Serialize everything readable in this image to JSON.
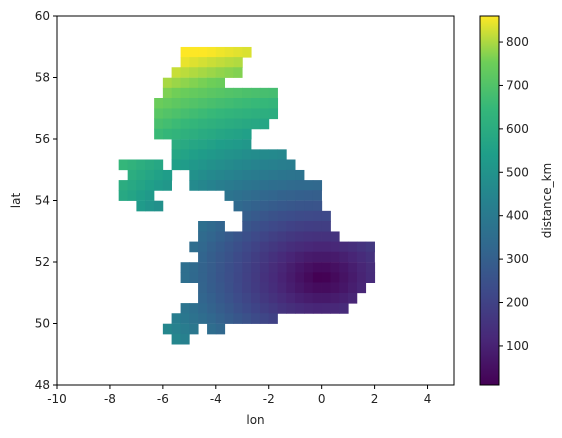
{
  "chart_data": {
    "type": "heatmap",
    "title": "",
    "xlabel": "lon",
    "ylabel": "lat",
    "xlim": [
      -10,
      5
    ],
    "ylim": [
      48,
      60
    ],
    "x_ticks": [
      -10,
      -8,
      -6,
      -4,
      -2,
      0,
      2,
      4
    ],
    "y_ticks": [
      48,
      50,
      52,
      54,
      56,
      58,
      60
    ],
    "grid_resolution_deg": {
      "lon": 0.3333,
      "lat": 0.3333
    },
    "colorbar": {
      "label": "distance_km",
      "colormap": "viridis",
      "range": [
        10,
        860
      ],
      "ticks": [
        100,
        200,
        300,
        400,
        500,
        600,
        700,
        800
      ]
    },
    "reference_point": {
      "lon": 0,
      "lat": 51.5
    },
    "value_model": "distance_km from reference point (great-circle), masked to land cells",
    "land_rows": [
      {
        "lat": 58.66,
        "spans": [
          [
            -5.33,
            -2.67
          ]
        ]
      },
      {
        "lat": 58.33,
        "spans": [
          [
            -5.33,
            -3.0
          ]
        ]
      },
      {
        "lat": 58.0,
        "spans": [
          [
            -5.67,
            -3.33
          ]
        ]
      },
      {
        "lat": 57.66,
        "spans": [
          [
            -6.0,
            -3.67
          ]
        ]
      },
      {
        "lat": 57.33,
        "spans": [
          [
            -6.0,
            -2.0
          ]
        ]
      },
      {
        "lat": 57.0,
        "spans": [
          [
            -6.33,
            -1.67
          ]
        ]
      },
      {
        "lat": 56.66,
        "spans": [
          [
            -6.33,
            -1.67
          ]
        ]
      },
      {
        "lat": 56.33,
        "spans": [
          [
            -6.33,
            -2.0
          ]
        ]
      },
      {
        "lat": 56.0,
        "spans": [
          [
            -6.33,
            -2.67
          ]
        ]
      },
      {
        "lat": 55.66,
        "spans": [
          [
            -5.67,
            -3.0
          ]
        ]
      },
      {
        "lat": 55.33,
        "spans": [
          [
            -5.67,
            -1.67
          ]
        ]
      },
      {
        "lat": 55.0,
        "spans": [
          [
            -7.67,
            -6.33
          ],
          [
            -5.67,
            -1.33
          ]
        ]
      },
      {
        "lat": 54.66,
        "spans": [
          [
            -7.33,
            -5.67
          ],
          [
            -5.0,
            -1.0
          ]
        ]
      },
      {
        "lat": 54.33,
        "spans": [
          [
            -7.67,
            -6.0
          ],
          [
            -5.0,
            -0.33
          ]
        ]
      },
      {
        "lat": 54.0,
        "spans": [
          [
            -7.67,
            -6.67
          ],
          [
            -3.67,
            -0.33
          ]
        ]
      },
      {
        "lat": 53.66,
        "spans": [
          [
            -7.0,
            -6.33
          ],
          [
            -3.33,
            -0.33
          ]
        ]
      },
      {
        "lat": 53.33,
        "spans": [
          [
            -3.0,
            0.0
          ]
        ]
      },
      {
        "lat": 53.0,
        "spans": [
          [
            -4.67,
            -4.0
          ],
          [
            -3.0,
            0.33
          ]
        ]
      },
      {
        "lat": 52.66,
        "spans": [
          [
            -4.67,
            0.33
          ]
        ]
      },
      {
        "lat": 52.33,
        "spans": [
          [
            -5.0,
            1.67
          ]
        ]
      },
      {
        "lat": 52.0,
        "spans": [
          [
            -4.67,
            1.67
          ]
        ]
      },
      {
        "lat": 51.66,
        "spans": [
          [
            -5.33,
            1.67
          ]
        ]
      },
      {
        "lat": 51.33,
        "spans": [
          [
            -5.33,
            1.67
          ]
        ]
      },
      {
        "lat": 51.0,
        "spans": [
          [
            -4.67,
            1.33
          ]
        ]
      },
      {
        "lat": 50.66,
        "spans": [
          [
            -4.67,
            1.0
          ]
        ]
      },
      {
        "lat": 50.33,
        "spans": [
          [
            -5.33,
            0.67
          ]
        ]
      },
      {
        "lat": 50.0,
        "spans": [
          [
            -5.67,
            -3.0
          ],
          [
            -2.67,
            -2.0
          ]
        ]
      },
      {
        "lat": 49.66,
        "spans": [
          [
            -6.0,
            -4.67
          ],
          [
            -4.33,
            -3.67
          ]
        ]
      },
      {
        "lat": 49.33,
        "spans": [
          [
            -5.67,
            -5.33
          ]
        ]
      }
    ]
  }
}
